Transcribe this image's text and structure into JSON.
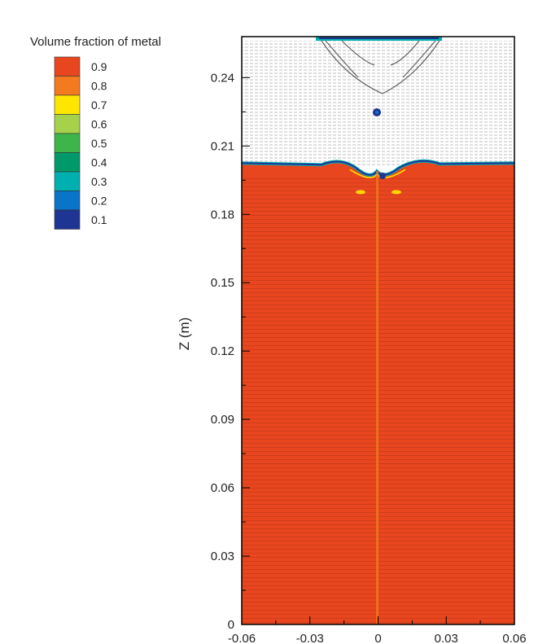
{
  "chart_data": {
    "type": "heatmap",
    "title": "",
    "legend": {
      "title": "Volume fraction of metal",
      "placement": "top-left",
      "levels": [
        {
          "label": "0.9",
          "color": "#e8461e"
        },
        {
          "label": "0.8",
          "color": "#f47a1f"
        },
        {
          "label": "0.7",
          "color": "#ffe600"
        },
        {
          "label": "0.6",
          "color": "#a6d14b"
        },
        {
          "label": "0.5",
          "color": "#3db54a"
        },
        {
          "label": "0.4",
          "color": "#009a6a"
        },
        {
          "label": "0.3",
          "color": "#00b0b0"
        },
        {
          "label": "0.2",
          "color": "#0a74c8"
        },
        {
          "label": "0.1",
          "color": "#1f3593"
        }
      ]
    },
    "ylabel": "Z (m)",
    "xlabel": "",
    "xlim": [
      -0.06,
      0.06
    ],
    "ylim": [
      0,
      0.258
    ],
    "xticks": [
      "-0.06",
      "-0.03",
      "0",
      "0.03",
      "0.06"
    ],
    "yticks": [
      "0",
      "0.03",
      "0.06",
      "0.09",
      "0.12",
      "0.15",
      "0.18",
      "0.21",
      "0.24"
    ],
    "metal_interface_z": 0.2025,
    "metal_color": "#e8461e",
    "gas_color": "#ffffff",
    "velocity_vectors": true
  }
}
